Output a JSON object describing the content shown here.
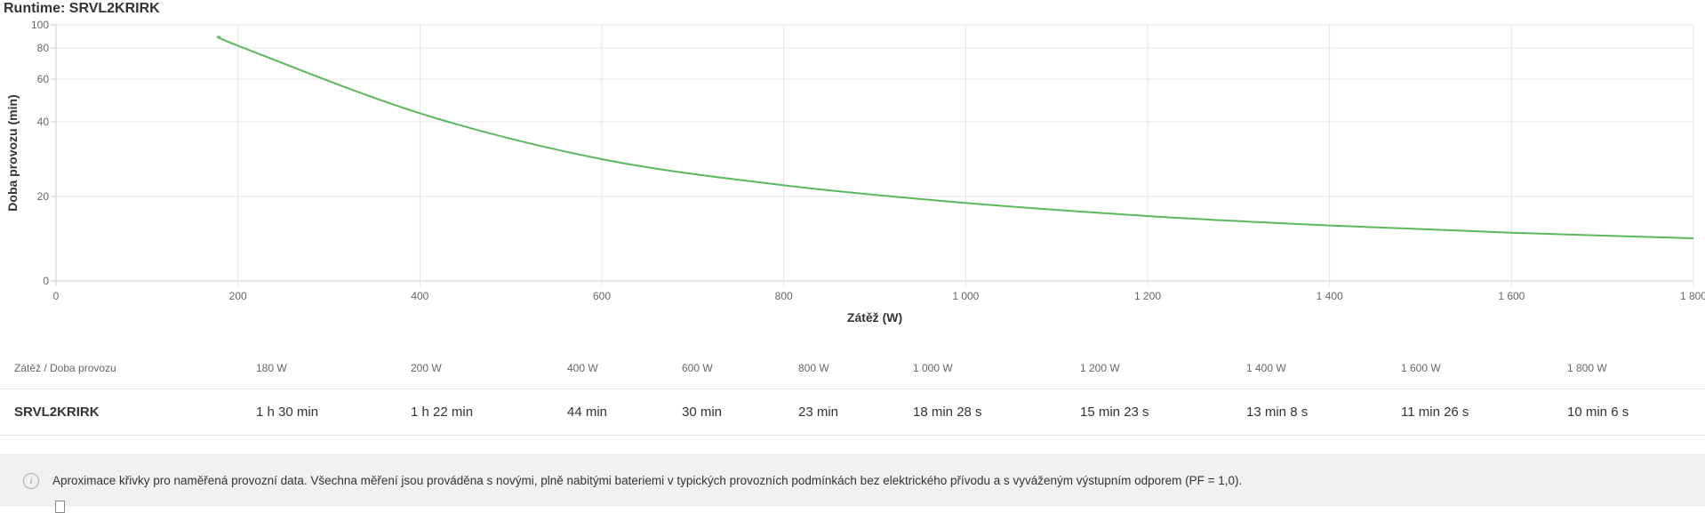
{
  "title": "Runtime: SRVL2KRIRK",
  "chart_data": {
    "type": "line",
    "xlabel": "Zátěž (W)",
    "ylabel": "Doba provozu (min)",
    "xlim": [
      0,
      1800
    ],
    "ylim": [
      0,
      100
    ],
    "x_ticks": [
      "0",
      "200",
      "400",
      "600",
      "800",
      "1 000",
      "1 200",
      "1 400",
      "1 600",
      "1 800"
    ],
    "y_ticks": [
      "0",
      "20",
      "40",
      "60",
      "80",
      "100"
    ],
    "grid": true,
    "y_scale": "non-linear (compressed toward top)",
    "series": [
      {
        "color": "#5cb85c",
        "x": [
          180,
          200,
          400,
          600,
          800,
          1000,
          1200,
          1400,
          1600,
          1800
        ],
        "y": [
          90,
          82,
          44,
          30,
          23,
          18.47,
          15.38,
          13.13,
          11.43,
          10.1
        ]
      }
    ]
  },
  "table": {
    "header_label": "Zátěž / Doba provozu",
    "loads": [
      "180 W",
      "200 W",
      "400 W",
      "600 W",
      "800 W",
      "1 000 W",
      "1 200 W",
      "1 400 W",
      "1 600 W",
      "1 800 W"
    ],
    "row_label": "SRVL2KRIRK",
    "runtimes": [
      "1 h 30 min",
      "1 h 22 min",
      "44 min",
      "30 min",
      "23 min",
      "18 min 28 s",
      "15 min 23 s",
      "13 min 8 s",
      "11 min 26 s",
      "10 min 6 s"
    ]
  },
  "note": "Aproximace křivky pro naměřená provozní data. Všechna měření jsou prováděna s novými, plně nabitými bateriemi v typických provozních podmínkách bez elektrického přívodu a s vyváženým výstupním odporem (PF = 1,0).",
  "icons": {
    "info": "info-icon",
    "document": "document-icon"
  }
}
